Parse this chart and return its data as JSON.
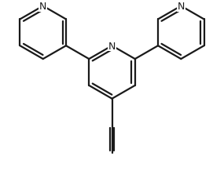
{
  "background": "#ffffff",
  "line_color": "#1a1a1a",
  "line_width": 1.6,
  "dbo": 0.028,
  "shorten": 0.08,
  "r": 0.22,
  "N_font_size": 9,
  "figsize": [
    2.85,
    2.28
  ],
  "dpi": 100,
  "xlim": [
    -0.85,
    0.85
  ],
  "ylim": [
    -0.72,
    0.72
  ]
}
